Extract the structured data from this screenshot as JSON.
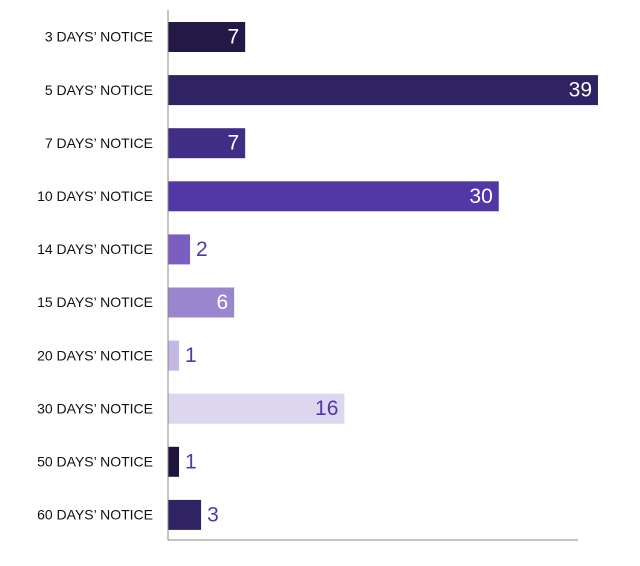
{
  "chart_data": {
    "type": "bar",
    "orientation": "horizontal",
    "title": "",
    "xlabel": "",
    "ylabel": "",
    "categories": [
      "3 DAYS’ NOTICE",
      "5 DAYS’ NOTICE",
      "7 DAYS’ NOTICE",
      "10 DAYS’ NOTICE",
      "14 DAYS’ NOTICE",
      "15 DAYS’ NOTICE",
      "20 DAYS’ NOTICE",
      "30 DAYS’ NOTICE",
      "50 DAYS’ NOTICE",
      "60 DAYS’ NOTICE"
    ],
    "values": [
      7,
      39,
      7,
      30,
      2,
      6,
      1,
      16,
      1,
      3
    ],
    "bar_colors": [
      "#241846",
      "#2f2363",
      "#3f2d86",
      "#5238a6",
      "#7b5fc0",
      "#9a86cf",
      "#c3b8e3",
      "#dcd6ee",
      "#1f1440",
      "#2f2363"
    ],
    "label_colors_inside": "#ffffff",
    "label_color_outside": "#5238a6",
    "xlim": [
      0,
      40
    ],
    "grid": false,
    "axis_color": "#888888"
  }
}
